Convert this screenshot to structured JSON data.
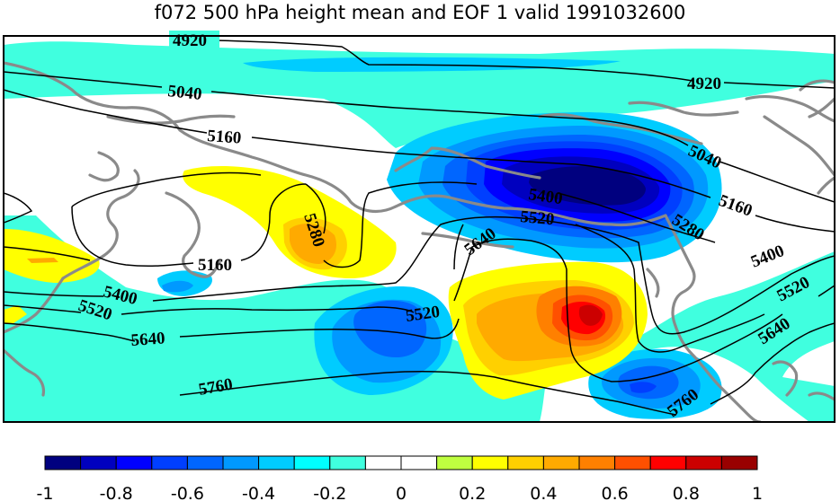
{
  "title": "f072 500 hPa height mean and EOF 1 valid 1991032600",
  "contour_labels": {
    "c4920": "4920",
    "c5040": "5040",
    "c5160": "5160",
    "c5280": "5280",
    "c5400": "5400",
    "c5520": "5520",
    "c5640": "5640",
    "c5760": "5760"
  },
  "colorbar": {
    "colors": [
      "#00007f",
      "#0000bf",
      "#0000ff",
      "#003fff",
      "#0066ff",
      "#0099ff",
      "#00ccff",
      "#00ffff",
      "#40ffdf",
      "#ffffff",
      "#ffffff",
      "#bfff40",
      "#ffff00",
      "#ffd000",
      "#ffaa00",
      "#ff8000",
      "#ff5000",
      "#ff0000",
      "#cc0000",
      "#990000"
    ],
    "tick_labels": [
      "-1",
      "-0.8",
      "-0.6",
      "-0.4",
      "-0.2",
      "0",
      "0.2",
      "0.4",
      "0.6",
      "0.8",
      "1"
    ]
  }
}
